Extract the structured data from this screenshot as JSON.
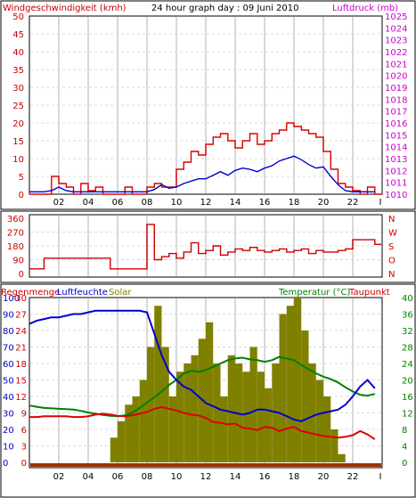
{
  "header": {
    "left_title": "Windgeschwindigkeit (kmh)",
    "center_title": "24 hour graph day : 09 Juni 2010",
    "right_title": "Luftdruck (mb)"
  },
  "x_axis": {
    "ticks": [
      "02",
      "04",
      "06",
      "08",
      "10",
      "12",
      "14",
      "16",
      "18",
      "20",
      "22",
      "I"
    ]
  },
  "colors": {
    "wind": "#dd0000",
    "pressure": "#0000cc",
    "direction": "#cc0000",
    "humidity": "#0000cc",
    "solar": "#808000",
    "temperature": "#008000",
    "dewpoint": "#dd0000",
    "rain": "#993300",
    "left_axis_text": "#cc0000",
    "right_axis_text_panel1": "#cc00cc",
    "humidity_axis_text": "#0000cc",
    "temp_axis_text": "#008000"
  },
  "chart_data": [
    {
      "type": "line",
      "panel": "wind-pressure",
      "xlabel": "",
      "ylabel": "Windgeschwindigkeit (kmh)",
      "y2label": "Luftdruck (mb)",
      "ylim": [
        0,
        50
      ],
      "yticks": [
        0,
        5,
        10,
        15,
        20,
        25,
        30,
        35,
        40,
        45,
        50
      ],
      "y2lim": [
        1010,
        1025
      ],
      "y2ticks": [
        1010,
        1011,
        1012,
        1013,
        1014,
        1015,
        1016,
        1017,
        1018,
        1019,
        1020,
        1021,
        1022,
        1023,
        1024,
        1025
      ],
      "x_hours": [
        0,
        0.5,
        1,
        1.5,
        2,
        2.5,
        3,
        3.5,
        4,
        4.5,
        5,
        5.5,
        6,
        6.5,
        7,
        7.5,
        8,
        8.5,
        9,
        9.5,
        10,
        10.5,
        11,
        11.5,
        12,
        12.5,
        13,
        13.5,
        14,
        14.5,
        15,
        15.5,
        16,
        16.5,
        17,
        17.5,
        18,
        18.5,
        19,
        19.5,
        20,
        20.5,
        21,
        21.5,
        22,
        22.5,
        23,
        23.5
      ],
      "series": [
        {
          "name": "Windgeschwindigkeit (kmh)",
          "axis": "left",
          "values": [
            0,
            0,
            0,
            5,
            3,
            2,
            0,
            3,
            1,
            2,
            0,
            0,
            0,
            2,
            0,
            0,
            2,
            3,
            2,
            2,
            7,
            9,
            12,
            11,
            14,
            16,
            17,
            15,
            13,
            15,
            17,
            14,
            15,
            17,
            18,
            20,
            19,
            18,
            17,
            16,
            12,
            7,
            3,
            2,
            1,
            0,
            2,
            0
          ]
        },
        {
          "name": "Luftdruck (mb)",
          "axis": "right",
          "values": [
            1010.2,
            1010.2,
            1010.2,
            1010.3,
            1010.6,
            1010.3,
            1010.2,
            1010.2,
            1010.2,
            1010.2,
            1010.2,
            1010.2,
            1010.2,
            1010.2,
            1010.2,
            1010.2,
            1010.2,
            1010.4,
            1010.8,
            1010.5,
            1010.6,
            1010.9,
            1011.1,
            1011.3,
            1011.3,
            1011.6,
            1011.9,
            1011.6,
            1012.0,
            1012.2,
            1012.1,
            1011.9,
            1012.2,
            1012.4,
            1012.8,
            1013.0,
            1013.2,
            1012.9,
            1012.5,
            1012.2,
            1012.3,
            1011.5,
            1010.8,
            1010.3,
            1010.2,
            1010.2,
            1010.2,
            1010.2
          ]
        }
      ]
    },
    {
      "type": "line",
      "panel": "wind-direction",
      "xlabel": "",
      "ylabel": "",
      "ylim": [
        0,
        360
      ],
      "yticks": [
        0,
        90,
        180,
        270,
        360
      ],
      "y2ticklabels": [
        "N",
        "O",
        "S",
        "W",
        "N"
      ],
      "x_hours": [
        0,
        0.5,
        1,
        1.5,
        2,
        2.5,
        3,
        3.5,
        4,
        4.5,
        5,
        5.5,
        6,
        6.5,
        7,
        7.5,
        8,
        8.5,
        9,
        9.5,
        10,
        10.5,
        11,
        11.5,
        12,
        12.5,
        13,
        13.5,
        14,
        14.5,
        15,
        15.5,
        16,
        16.5,
        17,
        17.5,
        18,
        18.5,
        19,
        19.5,
        20,
        20.5,
        21,
        21.5,
        22,
        22.5,
        23,
        23.5
      ],
      "series": [
        {
          "name": "",
          "values": [
            30,
            30,
            100,
            100,
            100,
            100,
            100,
            100,
            100,
            100,
            100,
            30,
            30,
            30,
            30,
            30,
            320,
            90,
            110,
            130,
            100,
            140,
            200,
            130,
            150,
            180,
            120,
            140,
            160,
            150,
            170,
            150,
            140,
            150,
            160,
            140,
            150,
            160,
            130,
            150,
            140,
            140,
            150,
            160,
            220,
            220,
            220,
            190
          ]
        }
      ]
    },
    {
      "type": "area",
      "panel": "humidity-temperature",
      "xlabel": "",
      "ylabel": "Luftfeuchte",
      "title_left": "Regenmenge",
      "title_solar": "Solar",
      "y2label": "Temperatur (°C)",
      "y2label_extra": "Taupunkt",
      "ylim": [
        0,
        100
      ],
      "yticks": [
        0,
        10,
        20,
        30,
        40,
        50,
        60,
        70,
        80,
        90,
        100
      ],
      "y_inner_ticks": [
        0,
        3,
        6,
        9,
        12,
        15,
        18,
        21,
        24,
        27,
        30
      ],
      "y2lim": [
        0,
        40
      ],
      "y2ticks": [
        0,
        4,
        8,
        12,
        16,
        20,
        24,
        28,
        32,
        36,
        40
      ],
      "x_hours": [
        0,
        0.5,
        1,
        1.5,
        2,
        2.5,
        3,
        3.5,
        4,
        4.5,
        5,
        5.5,
        6,
        6.5,
        7,
        7.5,
        8,
        8.5,
        9,
        9.5,
        10,
        10.5,
        11,
        11.5,
        12,
        12.5,
        13,
        13.5,
        14,
        14.5,
        15,
        15.5,
        16,
        16.5,
        17,
        17.5,
        18,
        18.5,
        19,
        19.5,
        20,
        20.5,
        21,
        21.5,
        22,
        22.5,
        23,
        23.5
      ],
      "series": [
        {
          "name": "Luftfeuchte",
          "axis": "left",
          "values": [
            84,
            86,
            87,
            88,
            88,
            89,
            90,
            90,
            91,
            92,
            92,
            92,
            92,
            92,
            92,
            92,
            91,
            78,
            65,
            55,
            50,
            46,
            44,
            40,
            36,
            34,
            32,
            31,
            30,
            29,
            30,
            32,
            32,
            31,
            30,
            28,
            26,
            25,
            27,
            29,
            30,
            31,
            32,
            35,
            40,
            46,
            50,
            45
          ]
        },
        {
          "name": "Solar",
          "axis": "left",
          "values": [
            0,
            0,
            0,
            0,
            0,
            0,
            0,
            0,
            0,
            0,
            0,
            15,
            25,
            35,
            40,
            50,
            70,
            95,
            70,
            40,
            55,
            60,
            65,
            75,
            85,
            60,
            40,
            65,
            60,
            55,
            70,
            55,
            45,
            60,
            90,
            95,
            100,
            80,
            60,
            50,
            40,
            20,
            5,
            0,
            0,
            0,
            0,
            0
          ]
        },
        {
          "name": "Temperatur (°C)",
          "axis": "right",
          "values": [
            13.8,
            13.5,
            13.2,
            13.1,
            13.0,
            12.9,
            12.8,
            12.5,
            12.1,
            11.8,
            11.5,
            11.3,
            11.2,
            11.4,
            12.0,
            13.2,
            14.5,
            15.8,
            17.2,
            18.8,
            20.0,
            21.6,
            22.2,
            22.0,
            22.4,
            23.2,
            24.0,
            24.8,
            25.2,
            25.4,
            25.0,
            24.8,
            24.4,
            24.8,
            25.6,
            25.2,
            24.8,
            23.6,
            22.6,
            21.6,
            20.8,
            20.2,
            19.4,
            18.2,
            17.2,
            16.4,
            16.2,
            16.6
          ]
        },
        {
          "name": "Taupunkt",
          "axis": "right",
          "values": [
            11.0,
            11.0,
            11.2,
            11.2,
            11.2,
            11.2,
            11.0,
            11.0,
            11.2,
            11.6,
            11.8,
            11.6,
            11.3,
            11.2,
            11.4,
            11.8,
            12.2,
            13.0,
            13.4,
            13.0,
            12.6,
            12.0,
            11.6,
            11.4,
            10.8,
            9.8,
            9.6,
            9.2,
            9.4,
            8.4,
            8.2,
            7.8,
            8.6,
            8.4,
            7.6,
            8.2,
            8.6,
            7.6,
            7.2,
            6.8,
            6.4,
            6.2,
            6.0,
            6.2,
            6.6,
            7.6,
            6.8,
            5.6
          ]
        },
        {
          "name": "Regenmenge",
          "axis": "left",
          "values": [
            0,
            0,
            0,
            0,
            0,
            0,
            0,
            0,
            0,
            0,
            0,
            0,
            0,
            0,
            0,
            0,
            0,
            0,
            0,
            0,
            0,
            0,
            0,
            0,
            0,
            0,
            0,
            0,
            0,
            0,
            0,
            0,
            0,
            0,
            0,
            0,
            0,
            0,
            0,
            0,
            0,
            0,
            0,
            0,
            0,
            0,
            0,
            0
          ]
        }
      ]
    }
  ]
}
